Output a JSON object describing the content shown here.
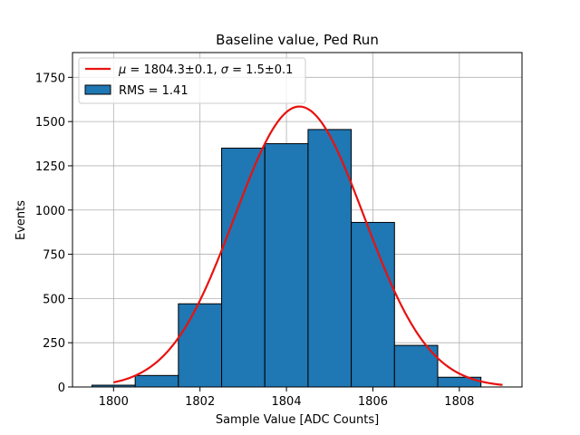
{
  "chart_data": {
    "type": "bar",
    "title": "Baseline value, Ped Run",
    "xlabel": "Sample Value [ADC Counts]",
    "ylabel": "Events",
    "xlim": [
      1799.05,
      1809.45
    ],
    "ylim": [
      0,
      1890
    ],
    "grid": true,
    "legend_position": "top-left",
    "x_ticks": [
      1800,
      1802,
      1804,
      1806,
      1808
    ],
    "x_tick_labels": [
      "1800",
      "1802",
      "1804",
      "1806",
      "1808"
    ],
    "y_ticks": [
      0,
      250,
      500,
      750,
      1000,
      1250,
      1500,
      1750
    ],
    "y_tick_labels": [
      "0",
      "250",
      "500",
      "750",
      "1000",
      "1250",
      "1500",
      "1750"
    ],
    "histogram": {
      "name": "RMS = 1.41",
      "color": "#1f77b4",
      "edge_color": "#000000",
      "bins": [
        {
          "x0": 1799.5,
          "x1": 1800.5,
          "count": 10
        },
        {
          "x0": 1800.5,
          "x1": 1801.5,
          "count": 65
        },
        {
          "x0": 1801.5,
          "x1": 1802.5,
          "count": 470
        },
        {
          "x0": 1802.5,
          "x1": 1803.5,
          "count": 1350
        },
        {
          "x0": 1803.5,
          "x1": 1804.5,
          "count": 1375
        },
        {
          "x0": 1804.5,
          "x1": 1805.5,
          "count": 1455
        },
        {
          "x0": 1805.5,
          "x1": 1806.5,
          "count": 930
        },
        {
          "x0": 1806.5,
          "x1": 1807.5,
          "count": 235
        },
        {
          "x0": 1807.5,
          "x1": 1808.5,
          "count": 55
        }
      ]
    },
    "fit": {
      "type": "gaussian",
      "mu": 1804.3,
      "mu_err": 0.1,
      "sigma": 1.5,
      "sigma_err": 0.1,
      "amplitude": 1585,
      "x_range": [
        1800,
        1809
      ],
      "color": "#e8120f",
      "mu_symbol": "μ",
      "sigma_symbol": "σ",
      "mu_text": " = 1804.3±0.1, ",
      "sigma_text": " = 1.5±0.1"
    }
  }
}
